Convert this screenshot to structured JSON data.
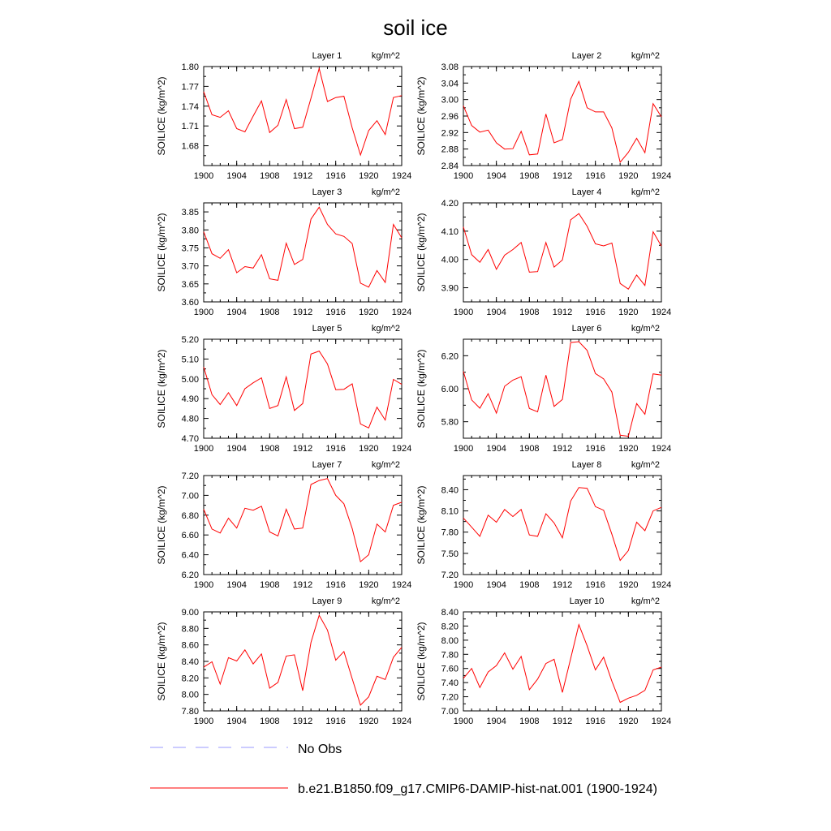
{
  "title": "soil ice",
  "colors": {
    "series": "#ff0000",
    "no_obs": "#9999ff",
    "axis": "#000000"
  },
  "legend": [
    {
      "label": "No Obs",
      "style": "dashed",
      "color": "#9999ff"
    },
    {
      "label": "b.e21.B1850.f09_g17.CMIP6-DAMIP-hist-nat.001 (1900-1924)",
      "style": "solid",
      "color": "#ff0000"
    }
  ],
  "chart_data": [
    {
      "type": "line",
      "title": "Layer 1",
      "units": "kg/m^2",
      "ylabel": "SOILICE  (kg/m^2)",
      "xlim": [
        1900,
        1924
      ],
      "xticks": [
        1900,
        1904,
        1908,
        1912,
        1916,
        1920,
        1924
      ],
      "ylim": [
        1.65,
        1.8
      ],
      "yticks": [
        "1.68",
        "1.71",
        "1.74",
        "1.77",
        "1.80"
      ],
      "x": [
        1900,
        1901,
        1902,
        1903,
        1904,
        1905,
        1906,
        1907,
        1908,
        1909,
        1910,
        1911,
        1912,
        1913,
        1914,
        1915,
        1916,
        1917,
        1918,
        1919,
        1920,
        1921,
        1922,
        1923,
        1924
      ],
      "y": [
        1.762,
        1.727,
        1.723,
        1.733,
        1.706,
        1.701,
        1.725,
        1.748,
        1.7,
        1.711,
        1.75,
        1.706,
        1.708,
        1.752,
        1.797,
        1.747,
        1.753,
        1.755,
        1.707,
        1.666,
        1.703,
        1.718,
        1.697,
        1.753,
        1.756
      ]
    },
    {
      "type": "line",
      "title": "Layer 2",
      "units": "kg/m^2",
      "ylabel": "SOILICE  (kg/m^2)",
      "xlim": [
        1900,
        1924
      ],
      "xticks": [
        1900,
        1904,
        1908,
        1912,
        1916,
        1920,
        1924
      ],
      "ylim": [
        2.84,
        3.08
      ],
      "yticks": [
        "2.84",
        "2.88",
        "2.92",
        "2.96",
        "3.00",
        "3.04",
        "3.08"
      ],
      "x": [
        1900,
        1901,
        1902,
        1903,
        1904,
        1905,
        1906,
        1907,
        1908,
        1909,
        1910,
        1911,
        1912,
        1913,
        1914,
        1915,
        1916,
        1917,
        1918,
        1919,
        1920,
        1921,
        1922,
        1923,
        1924
      ],
      "y": [
        2.985,
        2.937,
        2.921,
        2.926,
        2.895,
        2.88,
        2.881,
        2.923,
        2.866,
        2.868,
        2.965,
        2.895,
        2.903,
        3.001,
        3.044,
        2.98,
        2.97,
        2.97,
        2.931,
        2.848,
        2.872,
        2.906,
        2.871,
        2.99,
        2.958
      ]
    },
    {
      "type": "line",
      "title": "Layer 3",
      "units": "kg/m^2",
      "ylabel": "SOILICE  (kg/m^2)",
      "xlim": [
        1900,
        1924
      ],
      "xticks": [
        1900,
        1904,
        1908,
        1912,
        1916,
        1920,
        1924
      ],
      "ylim": [
        3.6,
        3.875
      ],
      "yticks": [
        "3.60",
        "3.65",
        "3.70",
        "3.75",
        "3.80",
        "3.85"
      ],
      "x": [
        1900,
        1901,
        1902,
        1903,
        1904,
        1905,
        1906,
        1907,
        1908,
        1909,
        1910,
        1911,
        1912,
        1913,
        1914,
        1915,
        1916,
        1917,
        1918,
        1919,
        1920,
        1921,
        1922,
        1923,
        1924
      ],
      "y": [
        3.795,
        3.734,
        3.721,
        3.745,
        3.681,
        3.698,
        3.694,
        3.731,
        3.664,
        3.66,
        3.763,
        3.704,
        3.718,
        3.83,
        3.863,
        3.815,
        3.789,
        3.782,
        3.762,
        3.652,
        3.641,
        3.687,
        3.654,
        3.815,
        3.778
      ]
    },
    {
      "type": "line",
      "title": "Layer 4",
      "units": "kg/m^2",
      "ylabel": "SOILICE  (kg/m^2)",
      "xlim": [
        1900,
        1924
      ],
      "xticks": [
        1900,
        1904,
        1908,
        1912,
        1916,
        1920,
        1924
      ],
      "ylim": [
        3.85,
        4.2
      ],
      "yticks": [
        "3.90",
        "4.00",
        "4.10",
        "4.20"
      ],
      "x": [
        1900,
        1901,
        1902,
        1903,
        1904,
        1905,
        1906,
        1907,
        1908,
        1909,
        1910,
        1911,
        1912,
        1913,
        1914,
        1915,
        1916,
        1917,
        1918,
        1919,
        1920,
        1921,
        1922,
        1923,
        1924
      ],
      "y": [
        4.115,
        4.017,
        3.99,
        4.035,
        3.965,
        4.015,
        4.035,
        4.06,
        3.955,
        3.957,
        4.06,
        3.973,
        3.998,
        4.14,
        4.162,
        4.117,
        4.055,
        4.048,
        4.058,
        3.915,
        3.895,
        3.945,
        3.908,
        4.098,
        4.047
      ]
    },
    {
      "type": "line",
      "title": "Layer 5",
      "units": "kg/m^2",
      "ylabel": "SOILICE  (kg/m^2)",
      "xlim": [
        1900,
        1924
      ],
      "xticks": [
        1900,
        1904,
        1908,
        1912,
        1916,
        1920,
        1924
      ],
      "ylim": [
        4.7,
        5.2
      ],
      "yticks": [
        "4.70",
        "4.80",
        "4.90",
        "5.00",
        "5.10",
        "5.20"
      ],
      "x": [
        1900,
        1901,
        1902,
        1903,
        1904,
        1905,
        1906,
        1907,
        1908,
        1909,
        1910,
        1911,
        1912,
        1913,
        1914,
        1915,
        1916,
        1917,
        1918,
        1919,
        1920,
        1921,
        1922,
        1923,
        1924
      ],
      "y": [
        5.06,
        4.92,
        4.87,
        4.93,
        4.865,
        4.95,
        4.98,
        5.005,
        4.85,
        4.865,
        5.01,
        4.84,
        4.875,
        5.125,
        5.14,
        5.075,
        4.945,
        4.947,
        4.975,
        4.772,
        4.752,
        4.857,
        4.792,
        4.997,
        4.972
      ]
    },
    {
      "type": "line",
      "title": "Layer 6",
      "units": "kg/m^2",
      "ylabel": "SOILICE  (kg/m^2)",
      "xlim": [
        1900,
        1924
      ],
      "xticks": [
        1900,
        1904,
        1908,
        1912,
        1916,
        1920,
        1924
      ],
      "ylim": [
        5.7,
        6.3
      ],
      "yticks": [
        "5.80",
        "6.00",
        "6.20"
      ],
      "x": [
        1900,
        1901,
        1902,
        1903,
        1904,
        1905,
        1906,
        1907,
        1908,
        1909,
        1910,
        1911,
        1912,
        1913,
        1914,
        1915,
        1916,
        1917,
        1918,
        1919,
        1920,
        1921,
        1922,
        1923,
        1924
      ],
      "y": [
        6.105,
        5.932,
        5.882,
        5.97,
        5.852,
        6.015,
        6.052,
        6.073,
        5.88,
        5.86,
        6.082,
        5.893,
        5.935,
        6.28,
        6.285,
        6.232,
        6.092,
        6.06,
        5.98,
        5.718,
        5.712,
        5.91,
        5.845,
        6.09,
        6.082
      ]
    },
    {
      "type": "line",
      "title": "Layer 7",
      "units": "kg/m^2",
      "ylabel": "SOILICE  (kg/m^2)",
      "xlim": [
        1900,
        1924
      ],
      "xticks": [
        1900,
        1904,
        1908,
        1912,
        1916,
        1920,
        1924
      ],
      "ylim": [
        6.2,
        7.2
      ],
      "yticks": [
        "6.20",
        "6.40",
        "6.60",
        "6.80",
        "7.00",
        "7.20"
      ],
      "x": [
        1900,
        1901,
        1902,
        1903,
        1904,
        1905,
        1906,
        1907,
        1908,
        1909,
        1910,
        1911,
        1912,
        1913,
        1914,
        1915,
        1916,
        1917,
        1918,
        1919,
        1920,
        1921,
        1922,
        1923,
        1924
      ],
      "y": [
        6.86,
        6.66,
        6.62,
        6.77,
        6.67,
        6.87,
        6.85,
        6.89,
        6.63,
        6.59,
        6.86,
        6.66,
        6.67,
        7.11,
        7.15,
        7.17,
        7.0,
        6.915,
        6.665,
        6.33,
        6.4,
        6.71,
        6.63,
        6.9,
        6.93
      ]
    },
    {
      "type": "line",
      "title": "Layer 8",
      "units": "kg/m^2",
      "ylabel": "SOILICE  (kg/m^2)",
      "xlim": [
        1900,
        1924
      ],
      "xticks": [
        1900,
        1904,
        1908,
        1912,
        1916,
        1920,
        1924
      ],
      "ylim": [
        7.2,
        8.6
      ],
      "yticks": [
        "7.20",
        "7.50",
        "7.80",
        "8.10",
        "8.40"
      ],
      "x": [
        1900,
        1901,
        1902,
        1903,
        1904,
        1905,
        1906,
        1907,
        1908,
        1909,
        1910,
        1911,
        1912,
        1913,
        1914,
        1915,
        1916,
        1917,
        1918,
        1919,
        1920,
        1921,
        1922,
        1923,
        1924
      ],
      "y": [
        8.0,
        7.87,
        7.74,
        8.04,
        7.94,
        8.12,
        8.02,
        8.12,
        7.76,
        7.74,
        8.06,
        7.93,
        7.72,
        8.24,
        8.43,
        8.42,
        8.16,
        8.11,
        7.77,
        7.4,
        7.54,
        7.94,
        7.82,
        8.1,
        8.15
      ]
    },
    {
      "type": "line",
      "title": "Layer 9",
      "units": "kg/m^2",
      "ylabel": "SOILICE  (kg/m^2)",
      "xlim": [
        1900,
        1924
      ],
      "xticks": [
        1900,
        1904,
        1908,
        1912,
        1916,
        1920,
        1924
      ],
      "ylim": [
        7.8,
        9.0
      ],
      "yticks": [
        "7.80",
        "8.00",
        "8.20",
        "8.40",
        "8.60",
        "8.80",
        "9.00"
      ],
      "x": [
        1900,
        1901,
        1902,
        1903,
        1904,
        1905,
        1906,
        1907,
        1908,
        1909,
        1910,
        1911,
        1912,
        1913,
        1914,
        1915,
        1916,
        1917,
        1918,
        1919,
        1920,
        1921,
        1922,
        1923,
        1924
      ],
      "y": [
        8.33,
        8.395,
        8.125,
        8.445,
        8.405,
        8.54,
        8.37,
        8.49,
        8.075,
        8.145,
        8.465,
        8.48,
        8.045,
        8.63,
        8.96,
        8.78,
        8.415,
        8.52,
        8.19,
        7.87,
        7.97,
        8.22,
        8.18,
        8.45,
        8.57
      ]
    },
    {
      "type": "line",
      "title": "Layer 10",
      "units": "kg/m^2",
      "ylabel": "SOILICE  (kg/m^2)",
      "xlim": [
        1900,
        1924
      ],
      "xticks": [
        1900,
        1904,
        1908,
        1912,
        1916,
        1920,
        1924
      ],
      "ylim": [
        7.0,
        8.4
      ],
      "yticks": [
        "7.00",
        "7.20",
        "7.40",
        "7.60",
        "7.80",
        "8.00",
        "8.20",
        "8.40"
      ],
      "x": [
        1900,
        1901,
        1902,
        1903,
        1904,
        1905,
        1906,
        1907,
        1908,
        1909,
        1910,
        1911,
        1912,
        1913,
        1914,
        1915,
        1916,
        1917,
        1918,
        1919,
        1920,
        1921,
        1922,
        1923,
        1924
      ],
      "y": [
        7.46,
        7.6,
        7.33,
        7.55,
        7.64,
        7.82,
        7.59,
        7.77,
        7.3,
        7.45,
        7.67,
        7.73,
        7.26,
        7.74,
        8.22,
        7.92,
        7.58,
        7.76,
        7.42,
        7.12,
        7.18,
        7.22,
        7.29,
        7.58,
        7.62
      ]
    }
  ]
}
